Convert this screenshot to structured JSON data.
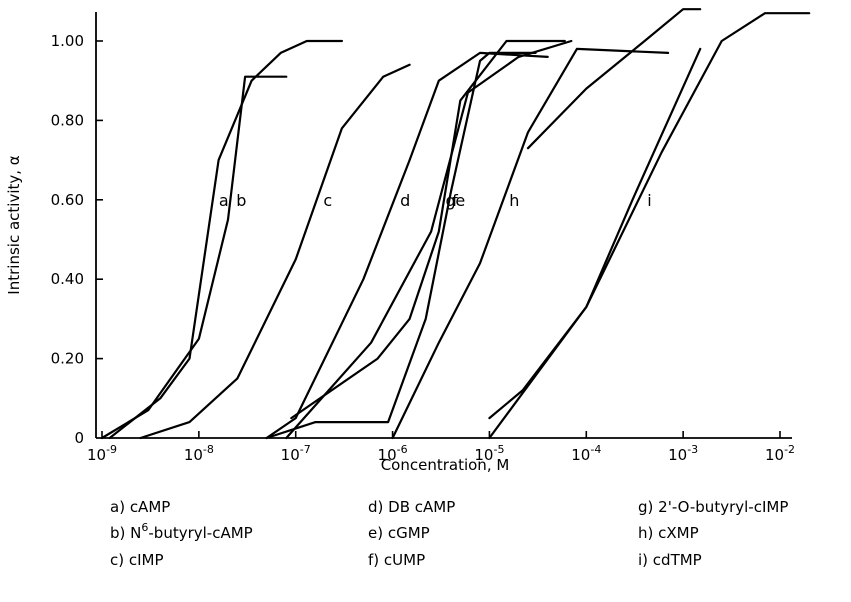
{
  "chart_data": {
    "type": "line",
    "xlabel": "Concentration, M",
    "ylabel": "Intrinsic activity, α",
    "x_scale": "log",
    "xlim": [
      1e-09,
      0.01
    ],
    "ylim": [
      0,
      1.08
    ],
    "grid": false,
    "x_ticks": [
      {
        "value": 1e-09,
        "base": "10",
        "exp": "-9"
      },
      {
        "value": 1e-08,
        "base": "10",
        "exp": "-8"
      },
      {
        "value": 1e-07,
        "base": "10",
        "exp": "-7"
      },
      {
        "value": 1e-06,
        "base": "10",
        "exp": "-6"
      },
      {
        "value": 1e-05,
        "base": "10",
        "exp": "-5"
      },
      {
        "value": 0.0001,
        "base": "10",
        "exp": "-4"
      },
      {
        "value": 0.001,
        "base": "10",
        "exp": "-3"
      },
      {
        "value": 0.01,
        "base": "10",
        "exp": "-2"
      }
    ],
    "y_ticks": [
      {
        "value": 0,
        "label": "0"
      },
      {
        "value": 0.2,
        "label": "0.20"
      },
      {
        "value": 0.4,
        "label": "0.40"
      },
      {
        "value": 0.6,
        "label": "0.60"
      },
      {
        "value": 0.8,
        "label": "0.80"
      },
      {
        "value": 1.0,
        "label": "1.00"
      }
    ],
    "series": [
      {
        "letter": "a",
        "points": [
          [
            1.2e-09,
            0
          ],
          [
            4e-09,
            0.1
          ],
          [
            8e-09,
            0.2
          ],
          [
            1.6e-08,
            0.7
          ],
          [
            3.5e-08,
            0.9
          ],
          [
            7e-08,
            0.97
          ],
          [
            1.3e-07,
            1.0
          ],
          [
            3e-07,
            1.0
          ]
        ]
      },
      {
        "letter": "b",
        "points": [
          [
            1e-09,
            0
          ],
          [
            3e-09,
            0.07
          ],
          [
            1e-08,
            0.25
          ],
          [
            2e-08,
            0.55
          ],
          [
            3e-08,
            0.91
          ],
          [
            8e-08,
            0.91
          ]
        ]
      },
      {
        "letter": "c",
        "points": [
          [
            2.5e-09,
            0
          ],
          [
            8e-09,
            0.04
          ],
          [
            2.5e-08,
            0.15
          ],
          [
            1e-07,
            0.45
          ],
          [
            3e-07,
            0.78
          ],
          [
            8e-07,
            0.91
          ],
          [
            1.5e-06,
            0.94
          ]
        ]
      },
      {
        "letter": "d",
        "points": [
          [
            5e-08,
            0
          ],
          [
            1e-07,
            0.05
          ],
          [
            5e-07,
            0.4
          ],
          [
            1.5e-06,
            0.7
          ],
          [
            3e-06,
            0.9
          ],
          [
            8e-06,
            0.97
          ],
          [
            4e-05,
            0.96
          ]
        ]
      },
      {
        "letter": "e",
        "points": [
          [
            5e-08,
            0
          ],
          [
            1.6e-07,
            0.04
          ],
          [
            9e-07,
            0.04
          ],
          [
            2.2e-06,
            0.3
          ],
          [
            4e-06,
            0.62
          ],
          [
            8e-06,
            0.95
          ],
          [
            1e-05,
            0.97
          ],
          [
            3e-05,
            0.97
          ]
        ]
      },
      {
        "letter": "f",
        "points": [
          [
            9e-08,
            0.05
          ],
          [
            7e-07,
            0.2
          ],
          [
            1.5e-06,
            0.3
          ],
          [
            3e-06,
            0.52
          ],
          [
            5e-06,
            0.85
          ],
          [
            1.5e-05,
            1.0
          ],
          [
            6e-05,
            1.0
          ]
        ]
      },
      {
        "letter": "g",
        "points": [
          [
            8e-08,
            0
          ],
          [
            6e-07,
            0.24
          ],
          [
            2.5e-06,
            0.52
          ],
          [
            6e-06,
            0.87
          ],
          [
            2e-05,
            0.96
          ],
          [
            7e-05,
            1.0
          ]
        ]
      },
      {
        "letter": "h",
        "points": [
          [
            1e-06,
            0
          ],
          [
            3e-06,
            0.24
          ],
          [
            8e-06,
            0.44
          ],
          [
            2.5e-05,
            0.77
          ],
          [
            8e-05,
            0.98
          ],
          [
            0.0007,
            0.97
          ]
        ]
      },
      {
        "letter": "i",
        "points": [
          [
            1e-05,
            0.05
          ],
          [
            2.2e-05,
            0.12
          ],
          [
            0.0001,
            0.33
          ],
          [
            0.0006,
            0.72
          ],
          [
            0.0025,
            1.0
          ],
          [
            0.007,
            1.07
          ],
          [
            0.02,
            1.07
          ]
        ]
      },
      {
        "letter": "",
        "points": [
          [
            1e-05,
            0.0
          ],
          [
            0.0001,
            0.33
          ],
          [
            0.0003,
            0.6
          ],
          [
            0.0007,
            0.8
          ],
          [
            0.0015,
            0.98
          ]
        ]
      },
      {
        "letter": "",
        "points": [
          [
            2.5e-05,
            0.73
          ],
          [
            0.0001,
            0.88
          ],
          [
            0.0004,
            1.0
          ],
          [
            0.001,
            1.08
          ],
          [
            0.0015,
            1.08
          ]
        ]
      }
    ],
    "legend": [
      {
        "key": "a)",
        "name": "cAMP"
      },
      {
        "key": "b)",
        "name": "N6-butyryl-cAMP"
      },
      {
        "key": "c)",
        "name": "cIMP"
      },
      {
        "key": "d)",
        "name": "DB cAMP"
      },
      {
        "key": "e)",
        "name": "cGMP"
      },
      {
        "key": "f)",
        "name": "cUMP"
      },
      {
        "key": "g)",
        "name": "2'-O-butyryl-cIMP"
      },
      {
        "key": "h)",
        "name": "cXMP"
      },
      {
        "key": "i)",
        "name": "cdTMP"
      }
    ]
  }
}
